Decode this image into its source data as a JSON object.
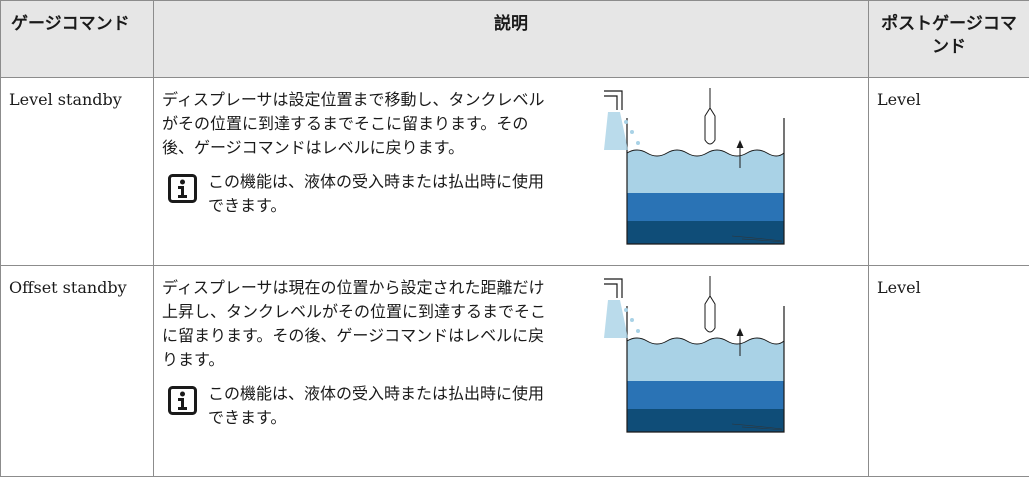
{
  "table": {
    "headers": [
      "ゲージコマンド",
      "説明",
      "ポストゲージコマンド"
    ],
    "rows": [
      {
        "command": "Level standby",
        "description": "ディスプレーサは設定位置まで移動し、タンクレベルがその位置に到達するまでそこに留まります。その後、ゲージコマンドはレベルに戻ります。",
        "note": "この機能は、液体の受入時または払出時に使用できます。",
        "post": "Level"
      },
      {
        "command": "Offset standby",
        "description": "ディスプレーサは現在の位置から設定された距離だけ上昇し、タンクレベルがその位置に到達するまでそこに留まります。その後、ゲージコマンドはレベルに戻ります。",
        "note": "この機能は、液体の受入時または払出時に使用できます。",
        "post": "Level"
      }
    ]
  }
}
